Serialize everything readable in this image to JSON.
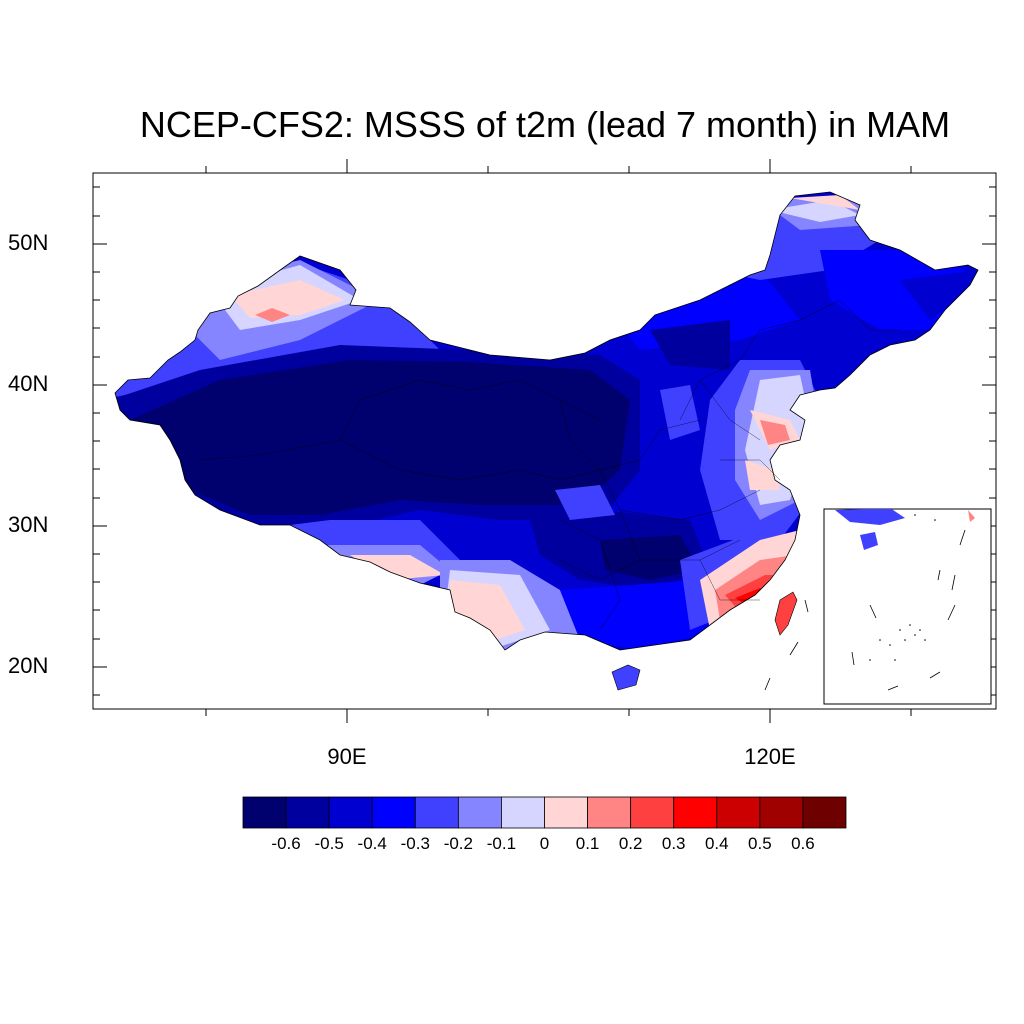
{
  "title": "NCEP-CFS2: MSSS of t2m (lead 7 month) in MAM",
  "lat_labels": [
    "50N",
    "40N",
    "30N",
    "20N"
  ],
  "lon_labels": [
    "90E",
    "120E"
  ],
  "colorbar": {
    "colors": [
      "#00006f",
      "#00009f",
      "#0000d0",
      "#0000ff",
      "#4040ff",
      "#8585ff",
      "#d5d5ff",
      "#ffd5d5",
      "#ff8585",
      "#ff4040",
      "#ff0000",
      "#cc0000",
      "#9f0000",
      "#6f0000"
    ],
    "labels": [
      "-0.6",
      "-0.5",
      "-0.4",
      "-0.3",
      "-0.2",
      "-0.1",
      "0",
      "0.1",
      "0.2",
      "0.3",
      "0.4",
      "0.5",
      "0.6"
    ]
  },
  "chart_data": {
    "type": "filled-contour-map",
    "variable": "MSSS of t2m",
    "model": "NCEP-CFS2",
    "lead": "7 month",
    "season": "MAM",
    "lon_range_deg_e": [
      72,
      136
    ],
    "lat_range_deg_n": [
      17,
      55
    ],
    "contour_levels": [
      -0.6,
      -0.5,
      -0.4,
      -0.3,
      -0.2,
      -0.1,
      0,
      0.1,
      0.2,
      0.3,
      0.4,
      0.5,
      0.6
    ],
    "inset": "South China Sea islands"
  }
}
